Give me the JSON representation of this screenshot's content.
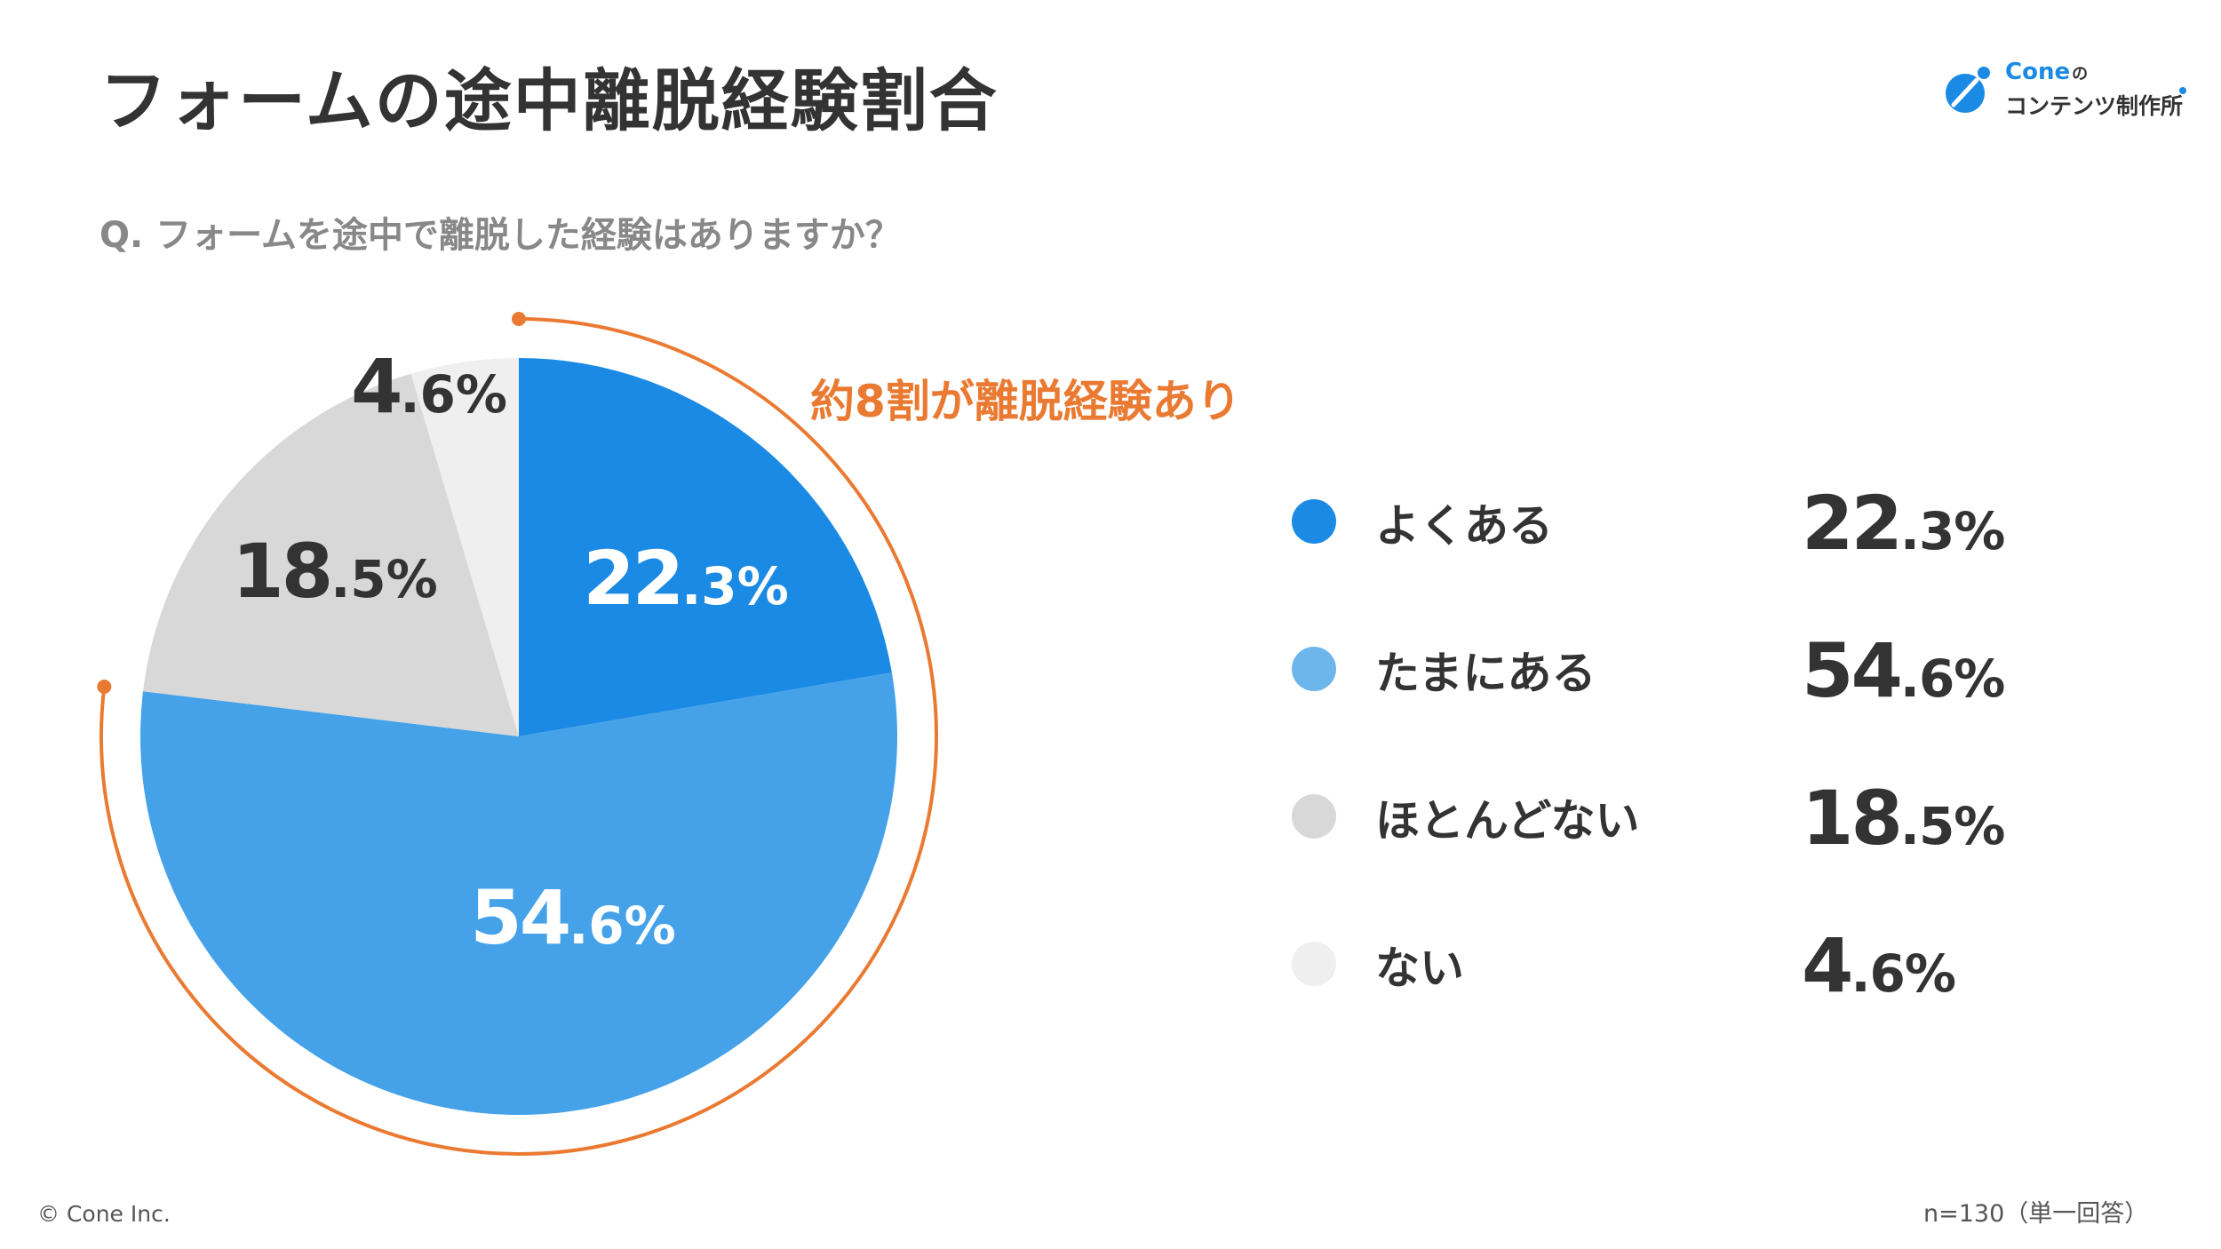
{
  "page": {
    "title": "フォームの途中離脱経験割合",
    "question": "Q. フォームを途中で離脱した経験はありますか？",
    "copyright": "© Cone Inc.",
    "sample_note": "n=130（単一回答）"
  },
  "logo": {
    "brand": "Cone",
    "brand_suffix": "の",
    "subtitle": "コンテンツ制作所"
  },
  "callout": {
    "text": "約8割が離脱経験あり",
    "color": "#ea7a32"
  },
  "chart_data": {
    "type": "pie",
    "categories": [
      "よくある",
      "たまにある",
      "ほとんどない",
      "ない"
    ],
    "values": [
      22.3,
      54.6,
      18.5,
      4.6
    ],
    "value_labels": [
      {
        "main": "22",
        "dec": ".3%"
      },
      {
        "main": "54",
        "dec": ".6%"
      },
      {
        "main": "18",
        "dec": ".5%"
      },
      {
        "main": "4",
        "dec": ".6%"
      }
    ],
    "colors": [
      "#1a8ae4",
      "#45a2e8",
      "#d8d8d8",
      "#efefef"
    ],
    "label_colors": [
      "#ffffff",
      "#ffffff",
      "#333333",
      "#333333"
    ],
    "start_angle": "12 o'clock",
    "direction": "clockwise"
  }
}
